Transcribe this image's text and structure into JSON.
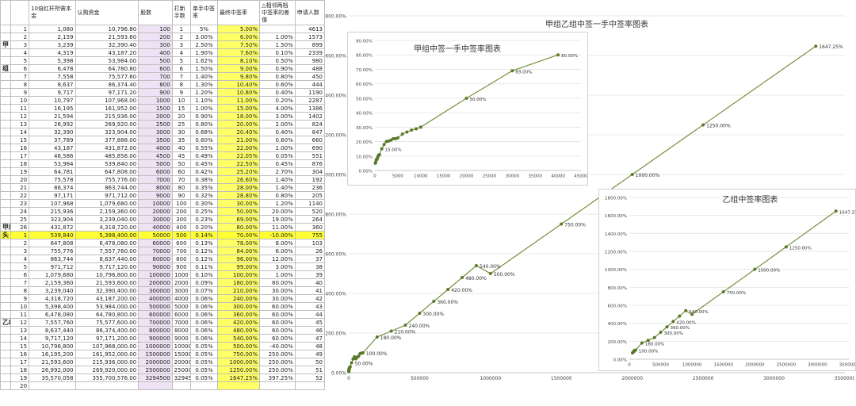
{
  "sheet": {
    "headers": [
      "",
      "",
      "10倍红杆所需本金",
      "认购资金",
      "股数",
      "打新手数",
      "单手中签率",
      "最终中签率",
      "△相邻两档中签率的差值",
      "申请人数"
    ],
    "group_labels": {
      "jia": "甲",
      "zu": "组",
      "jia_wei": "甲尾",
      "tou": "头",
      "yi_zu": "乙组"
    },
    "rows": [
      {
        "n": "1",
        "p": "1,080",
        "f": "10,796.80",
        "s": "100",
        "l": "1",
        "r": "5%",
        "fr": "5.00%",
        "d": "",
        "a": "4613"
      },
      {
        "n": "2",
        "p": "2,159",
        "f": "21,593.60",
        "s": "200",
        "l": "2",
        "r": "3.00%",
        "fr": "6.00%",
        "d": "1.00%",
        "a": "1573"
      },
      {
        "n": "3",
        "p": "3,239",
        "f": "32,390.40",
        "s": "300",
        "l": "3",
        "r": "2.50%",
        "fr": "7.50%",
        "d": "1.50%",
        "a": "899"
      },
      {
        "n": "4",
        "p": "4,319",
        "f": "43,187.20",
        "s": "400",
        "l": "4",
        "r": "1.90%",
        "fr": "7.60%",
        "d": "0.10%",
        "a": "2339"
      },
      {
        "n": "5",
        "p": "5,398",
        "f": "53,984.00",
        "s": "500",
        "l": "5",
        "r": "1.62%",
        "fr": "8.10%",
        "d": "0.50%",
        "a": "980"
      },
      {
        "n": "6",
        "p": "6,478",
        "f": "64,780.80",
        "s": "600",
        "l": "6",
        "r": "1.50%",
        "fr": "9.00%",
        "d": "0.90%",
        "a": "488"
      },
      {
        "n": "7",
        "p": "7,558",
        "f": "75,577.60",
        "s": "700",
        "l": "7",
        "r": "1.40%",
        "fr": "9.80%",
        "d": "0.80%",
        "a": "450"
      },
      {
        "n": "8",
        "p": "8,637",
        "f": "86,374.40",
        "s": "800",
        "l": "8",
        "r": "1.30%",
        "fr": "10.40%",
        "d": "0.60%",
        "a": "444"
      },
      {
        "n": "9",
        "p": "9,717",
        "f": "97,171.20",
        "s": "900",
        "l": "9",
        "r": "1.20%",
        "fr": "10.80%",
        "d": "0.40%",
        "a": "1190"
      },
      {
        "n": "10",
        "p": "10,797",
        "f": "107,968.00",
        "s": "1000",
        "l": "10",
        "r": "1.10%",
        "fr": "11.00%",
        "d": "0.20%",
        "a": "2287"
      },
      {
        "n": "11",
        "p": "16,195",
        "f": "161,952.00",
        "s": "1500",
        "l": "15",
        "r": "1.00%",
        "fr": "15.00%",
        "d": "4.00%",
        "a": "1386"
      },
      {
        "n": "12",
        "p": "21,594",
        "f": "215,936.00",
        "s": "2000",
        "l": "20",
        "r": "0.90%",
        "fr": "18.00%",
        "d": "3.00%",
        "a": "1402"
      },
      {
        "n": "13",
        "p": "26,992",
        "f": "269,920.00",
        "s": "2500",
        "l": "25",
        "r": "0.80%",
        "fr": "20.00%",
        "d": "2.00%",
        "a": "824"
      },
      {
        "n": "14",
        "p": "32,390",
        "f": "323,904.00",
        "s": "3000",
        "l": "30",
        "r": "0.68%",
        "fr": "20.40%",
        "d": "0.40%",
        "a": "847"
      },
      {
        "n": "15",
        "p": "37,789",
        "f": "377,888.00",
        "s": "3500",
        "l": "35",
        "r": "0.60%",
        "fr": "21.00%",
        "d": "0.60%",
        "a": "660"
      },
      {
        "n": "16",
        "p": "43,187",
        "f": "431,872.00",
        "s": "4000",
        "l": "40",
        "r": "0.55%",
        "fr": "22.00%",
        "d": "1.00%",
        "a": "690"
      },
      {
        "n": "17",
        "p": "48,586",
        "f": "485,856.00",
        "s": "4500",
        "l": "45",
        "r": "0.49%",
        "fr": "22.05%",
        "d": "0.05%",
        "a": "551"
      },
      {
        "n": "18",
        "p": "53,984",
        "f": "539,840.00",
        "s": "5000",
        "l": "50",
        "r": "0.45%",
        "fr": "22.50%",
        "d": "0.45%",
        "a": "876"
      },
      {
        "n": "19",
        "p": "64,781",
        "f": "647,808.00",
        "s": "6000",
        "l": "60",
        "r": "0.42%",
        "fr": "25.20%",
        "d": "2.70%",
        "a": "304"
      },
      {
        "n": "20",
        "p": "75,578",
        "f": "755,776.00",
        "s": "7000",
        "l": "70",
        "r": "0.38%",
        "fr": "26.60%",
        "d": "1.40%",
        "a": "192"
      },
      {
        "n": "21",
        "p": "86,374",
        "f": "863,744.00",
        "s": "8000",
        "l": "80",
        "r": "0.35%",
        "fr": "28.00%",
        "d": "1.40%",
        "a": "236"
      },
      {
        "n": "22",
        "p": "97,171",
        "f": "971,712.00",
        "s": "9000",
        "l": "90",
        "r": "0.32%",
        "fr": "28.80%",
        "d": "0.80%",
        "a": "205"
      },
      {
        "n": "23",
        "p": "107,968",
        "f": "1,079,680.00",
        "s": "10000",
        "l": "100",
        "r": "0.30%",
        "fr": "30.00%",
        "d": "1.20%",
        "a": "1140"
      },
      {
        "n": "24",
        "p": "215,936",
        "f": "2,159,360.00",
        "s": "20000",
        "l": "200",
        "r": "0.25%",
        "fr": "50.00%",
        "d": "20.00%",
        "a": "520"
      },
      {
        "n": "25",
        "p": "323,904",
        "f": "3,239,040.00",
        "s": "30000",
        "l": "300",
        "r": "0.23%",
        "fr": "69.00%",
        "d": "19.00%",
        "a": "264"
      },
      {
        "n": "26",
        "p": "431,872",
        "f": "4,318,720.00",
        "s": "40000",
        "l": "400",
        "r": "0.20%",
        "fr": "80.00%",
        "d": "11.00%",
        "a": "360"
      },
      {
        "n": "1",
        "p": "539,840",
        "f": "5,398,400.00",
        "s": "50000",
        "l": "500",
        "r": "0.14%",
        "fr": "70.00%",
        "d": "-10.00%",
        "a": "755",
        "hl": true
      },
      {
        "n": "2",
        "p": "647,808",
        "f": "6,478,080.00",
        "s": "60000",
        "l": "600",
        "r": "0.13%",
        "fr": "78.00%",
        "d": "8.00%",
        "a": "103"
      },
      {
        "n": "3",
        "p": "755,776",
        "f": "7,557,760.00",
        "s": "70000",
        "l": "700",
        "r": "0.12%",
        "fr": "84.00%",
        "d": "6.00%",
        "a": "26"
      },
      {
        "n": "4",
        "p": "863,744",
        "f": "8,637,440.00",
        "s": "80000",
        "l": "800",
        "r": "0.12%",
        "fr": "96.00%",
        "d": "12.00%",
        "a": "37"
      },
      {
        "n": "5",
        "p": "971,712",
        "f": "9,717,120.00",
        "s": "90000",
        "l": "900",
        "r": "0.11%",
        "fr": "99.00%",
        "d": "3.00%",
        "a": "38"
      },
      {
        "n": "6",
        "p": "1,079,680",
        "f": "10,796,800.00",
        "s": "100000",
        "l": "1000",
        "r": "0.10%",
        "fr": "100.00%",
        "d": "1.00%",
        "a": "39"
      },
      {
        "n": "7",
        "p": "2,159,360",
        "f": "21,593,600.00",
        "s": "200000",
        "l": "2000",
        "r": "0.09%",
        "fr": "180.00%",
        "d": "80.00%",
        "a": "40"
      },
      {
        "n": "8",
        "p": "3,239,040",
        "f": "32,390,400.00",
        "s": "300000",
        "l": "3000",
        "r": "0.07%",
        "fr": "210.00%",
        "d": "30.00%",
        "a": "41"
      },
      {
        "n": "9",
        "p": "4,318,720",
        "f": "43,187,200.00",
        "s": "400000",
        "l": "4000",
        "r": "0.06%",
        "fr": "240.00%",
        "d": "30.00%",
        "a": "42"
      },
      {
        "n": "10",
        "p": "5,398,400",
        "f": "53,984,000.00",
        "s": "500000",
        "l": "5000",
        "r": "0.06%",
        "fr": "300.00%",
        "d": "60.00%",
        "a": "43"
      },
      {
        "n": "11",
        "p": "6,478,080",
        "f": "64,780,800.00",
        "s": "600000",
        "l": "6000",
        "r": "0.06%",
        "fr": "360.00%",
        "d": "60.00%",
        "a": "44"
      },
      {
        "n": "12",
        "p": "7,557,760",
        "f": "75,577,600.00",
        "s": "700000",
        "l": "7000",
        "r": "0.06%",
        "fr": "420.00%",
        "d": "60.00%",
        "a": "45"
      },
      {
        "n": "13",
        "p": "8,637,440",
        "f": "86,374,400.00",
        "s": "800000",
        "l": "8000",
        "r": "0.06%",
        "fr": "480.00%",
        "d": "60.00%",
        "a": "46"
      },
      {
        "n": "14",
        "p": "9,717,120",
        "f": "97,171,200.00",
        "s": "900000",
        "l": "9000",
        "r": "0.06%",
        "fr": "540.00%",
        "d": "60.00%",
        "a": "47"
      },
      {
        "n": "15",
        "p": "10,796,800",
        "f": "107,968,000.00",
        "s": "1000000",
        "l": "10000",
        "r": "0.05%",
        "fr": "500.00%",
        "d": "-40.00%",
        "a": "48"
      },
      {
        "n": "16",
        "p": "16,195,200",
        "f": "161,952,000.00",
        "s": "1500000",
        "l": "15000",
        "r": "0.05%",
        "fr": "750.00%",
        "d": "250.00%",
        "a": "49"
      },
      {
        "n": "17",
        "p": "21,593,600",
        "f": "215,936,000.00",
        "s": "2000000",
        "l": "20000",
        "r": "0.05%",
        "fr": "1000.00%",
        "d": "250.00%",
        "a": "50"
      },
      {
        "n": "18",
        "p": "26,992,000",
        "f": "269,920,000.00",
        "s": "2500000",
        "l": "25000",
        "r": "0.05%",
        "fr": "1250.00%",
        "d": "250.00%",
        "a": "51"
      },
      {
        "n": "19",
        "p": "35,570,058",
        "f": "355,700,576.00",
        "s": "3294500",
        "l": "32945",
        "r": "0.05%",
        "fr": "1647.25%",
        "d": "397.25%",
        "a": "52"
      },
      {
        "n": "20",
        "p": "",
        "f": "",
        "s": "",
        "l": "",
        "r": "",
        "fr": "",
        "d": "",
        "a": ""
      }
    ]
  },
  "chart_data": [
    {
      "type": "line",
      "title": "甲组乙组中签一手中签率图表",
      "xlim": [
        0,
        3500000
      ],
      "ylim": [
        0,
        1800
      ],
      "yticks": [
        "0.00%",
        "200.00%",
        "400.00%",
        "600.00%",
        "800.00%",
        "1000.00%",
        "1200.00%",
        "1400.00%",
        "1600.00%",
        "1800.00%"
      ],
      "xticks": [
        "0",
        "500000",
        "1000000",
        "1500000",
        "2000000",
        "2500000",
        "3000000",
        "3500000"
      ],
      "x": [
        100,
        200,
        300,
        400,
        500,
        600,
        700,
        800,
        900,
        1000,
        1500,
        2000,
        2500,
        3000,
        3500,
        4000,
        4500,
        5000,
        6000,
        7000,
        8000,
        9000,
        10000,
        20000,
        30000,
        40000,
        50000,
        60000,
        70000,
        80000,
        90000,
        100000,
        200000,
        300000,
        400000,
        500000,
        600000,
        700000,
        800000,
        900000,
        1000000,
        1500000,
        2000000,
        2500000,
        3294500
      ],
      "y": [
        5,
        6,
        7.5,
        7.6,
        8.1,
        9,
        9.8,
        10.4,
        10.8,
        11,
        15,
        18,
        20,
        20.4,
        21,
        22,
        22.05,
        22.5,
        25.2,
        26.6,
        28,
        28.8,
        30,
        50,
        69,
        80,
        70,
        78,
        84,
        96,
        99,
        100,
        180,
        210,
        240,
        300,
        360,
        420,
        480,
        540,
        500,
        750,
        1000,
        1250,
        1647.25
      ],
      "labels": [
        "50.00%",
        "100.00%",
        "180.00%",
        "210.00%",
        "240.00%",
        "300.00%",
        "360.00%",
        "420.00%",
        "480.00%",
        "540.00%",
        "500.00%",
        "750.00%",
        "1000.00%",
        "1250.00%",
        "1647.25%"
      ]
    },
    {
      "type": "line",
      "title": "甲组中签一手中签率图表",
      "xlim": [
        0,
        45000
      ],
      "ylim": [
        0,
        90
      ],
      "yticks": [
        "0.00%",
        "10.00%",
        "20.00%",
        "30.00%",
        "40.00%",
        "50.00%",
        "60.00%",
        "70.00%",
        "80.00%",
        "90.00%"
      ],
      "xticks": [
        "0",
        "5000",
        "10000",
        "15000",
        "20000",
        "25000",
        "30000",
        "35000",
        "40000",
        "45000"
      ],
      "x": [
        100,
        200,
        300,
        400,
        500,
        600,
        700,
        800,
        900,
        1000,
        1500,
        2000,
        2500,
        3000,
        3500,
        4000,
        4500,
        5000,
        6000,
        7000,
        8000,
        9000,
        10000,
        20000,
        30000,
        40000
      ],
      "y": [
        5,
        6,
        7.5,
        7.6,
        8.1,
        9,
        9.8,
        10.4,
        10.8,
        11,
        15,
        18,
        20,
        20.4,
        21,
        22,
        22.05,
        22.5,
        25.2,
        26.6,
        28,
        28.8,
        30,
        50,
        69,
        80
      ],
      "labels": [
        "50.00%",
        "69.00%",
        "80.00%",
        "15.00%"
      ]
    },
    {
      "type": "line",
      "title": "乙组中签率图表",
      "xlim": [
        0,
        3500000
      ],
      "ylim": [
        0,
        1800
      ],
      "yticks": [
        "0.00%",
        "200.00%",
        "400.00%",
        "600.00%",
        "800.00%",
        "1000.00%",
        "1200.00%",
        "1400.00%",
        "1600.00%",
        "1800.00%"
      ],
      "xticks": [
        "0",
        "500000",
        "1000000",
        "1500000",
        "2000000",
        "2500000",
        "3000000",
        "3500000"
      ],
      "x": [
        50000,
        60000,
        70000,
        80000,
        90000,
        100000,
        200000,
        300000,
        400000,
        500000,
        600000,
        700000,
        800000,
        900000,
        1000000,
        1500000,
        2000000,
        2500000,
        3294500
      ],
      "y": [
        70,
        78,
        84,
        96,
        99,
        100,
        180,
        210,
        240,
        300,
        360,
        420,
        480,
        540,
        500,
        750,
        1000,
        1250,
        1647.25
      ],
      "labels": [
        "100.00%",
        "180.00%",
        "300.00%",
        "360.00%",
        "420.00%",
        "540.00%",
        "750.00%",
        "1000.00%",
        "1250.00%",
        "1647.25%"
      ]
    }
  ],
  "colors": {
    "line": "#76923c",
    "marker": "#5a7a2a",
    "highlight": "#ffff33",
    "shares": "#ede3f4",
    "final": "#ffff66"
  }
}
